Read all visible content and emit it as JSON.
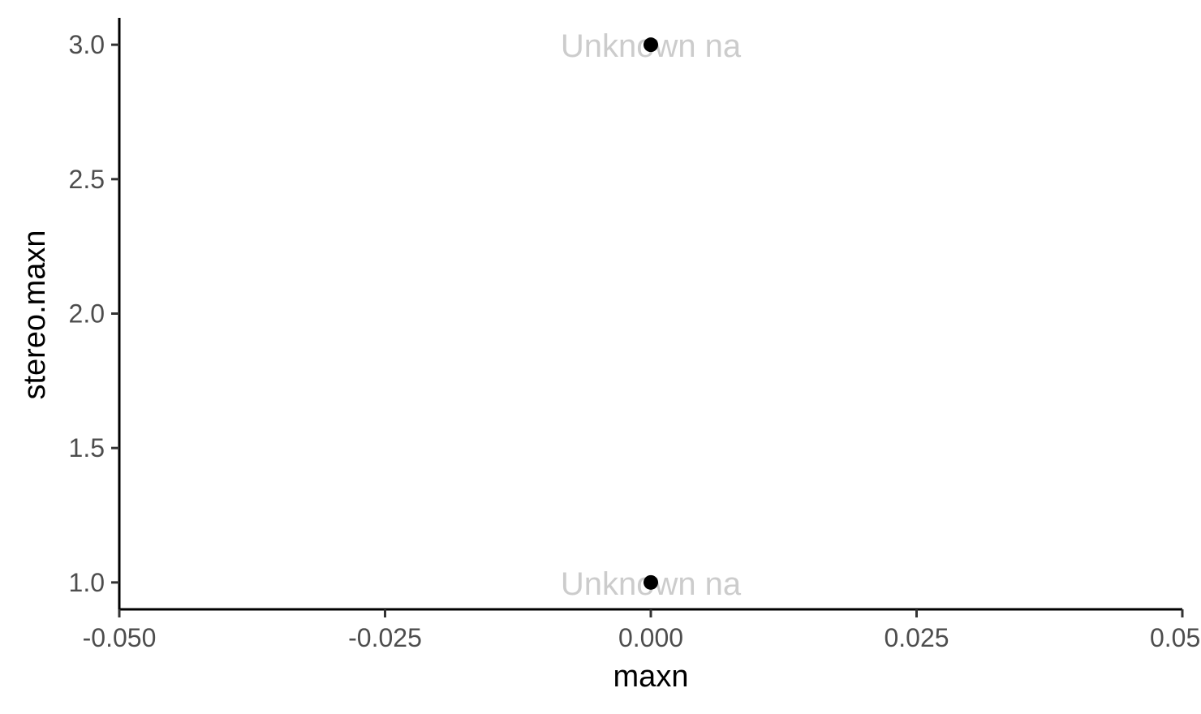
{
  "chart_data": {
    "type": "scatter",
    "xlabel": "maxn",
    "ylabel": "stereo.maxn",
    "xlim": [
      -0.05,
      0.05
    ],
    "ylim": [
      0.9,
      3.1
    ],
    "x_ticks": [
      -0.05,
      -0.025,
      0.0,
      0.025,
      0.05
    ],
    "x_tick_labels": [
      "-0.050",
      "-0.025",
      "0.000",
      "0.025",
      "0.050"
    ],
    "y_ticks": [
      1.0,
      1.5,
      2.0,
      2.5,
      3.0
    ],
    "y_tick_labels": [
      "1.0",
      "1.5",
      "2.0",
      "2.5",
      "3.0"
    ],
    "grid": false,
    "points": [
      {
        "x": 0.0,
        "y": 3.0,
        "label": "Unknown na"
      },
      {
        "x": 0.0,
        "y": 1.0,
        "label": "Unknown na"
      }
    ],
    "colors": {
      "point": "#000000",
      "label": "#cccccc",
      "axis": "#000000",
      "tick_label": "#4d4d4d"
    }
  }
}
